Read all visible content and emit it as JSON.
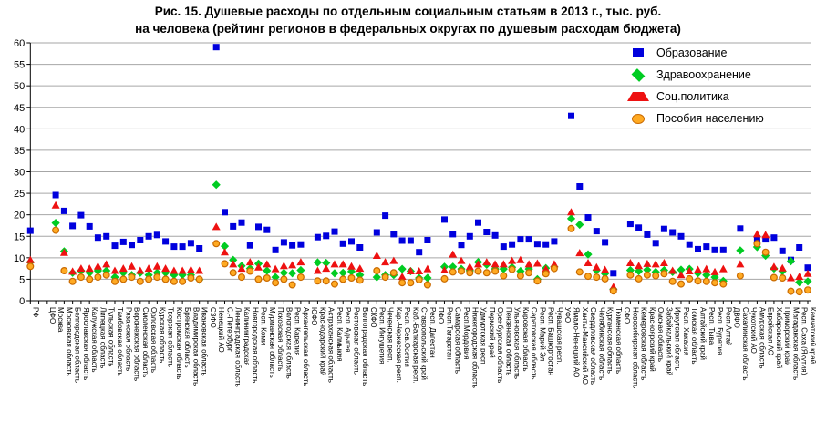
{
  "title": {
    "line1": "Рис. 15. Душевые расходы по отдельным социальным статьям в 2013 г., тыс. руб.",
    "line2": "на человека (рейтинг регионов в федеральных округах по душевым расходам бюджета)"
  },
  "chart_data": {
    "type": "scatter",
    "title": "Рис. 15. Душевые расходы по отдельным социальным статьям в 2013 г., тыс. руб. на человека (рейтинг регионов в федеральных округах по душевым расходам бюджета)",
    "ylabel": "",
    "xlabel": "",
    "ylim": [
      0,
      60
    ],
    "ytick_step": 5,
    "grid": true,
    "legend_position": "top-right",
    "note": "null = маркер не показан (пустая колонка, заголовок округа без данных или значение вне шкалы)",
    "categories": [
      "РФ",
      "",
      "ЦФО",
      "Москва",
      "Московская область",
      "Белгородская область",
      "Ярославская область",
      "Калужская область",
      "Липецкая область",
      "Тульская область",
      "Тамбовская область",
      "Рязанская область",
      "Воронежская область",
      "Смоленская область",
      "Орловская область",
      "Курская область",
      "Тверская область",
      "Костромская область",
      "Брянская область",
      "Владимирская область",
      "Ивановская область",
      "СЗФО",
      "Ненецкий АО",
      "С.-Петербург",
      "Ленинградская область",
      "Калининградская",
      "Новгородская область",
      "Респ. Коми",
      "Мурманская область",
      "Псковская область",
      "Вологодская область",
      "Респ. Карелия",
      "Архангельская область",
      "ЮФО",
      "Краснодарский край",
      "Астраханская область",
      "Респ. Калмыкия",
      "Респ. Адыгея",
      "Ростовская область",
      "Волгоградская область",
      "СКФО",
      "Респ. Ингушетия",
      "Чеченская респ.",
      "Кар.-Черкесская респ.",
      "Респ. Сев.Осетия",
      "Каб.-Балкарская респ.",
      "Ставропольский край",
      "Респ. Дагестан",
      "ПФО",
      "Респ.Татарстан",
      "Самарская область",
      "Респ.Мордовия",
      "Нижегородская область",
      "Удмуртская респ.",
      "Пермский край",
      "Оренбургская область",
      "Пензенская область",
      "Ульяновская область",
      "Кировская область",
      "Саратовская область",
      "Респ. Марий Эл",
      "Респ. Башкортостан",
      "Чувашская респ.",
      "УФО",
      "Ямало-Ненецкий АО",
      "Ханты-Мансийский АО",
      "Свердловская область",
      "Челябинская область",
      "Курганская область",
      "Тюменская область",
      "СФО",
      "Новосибирская область",
      "Кемеровская область",
      "Красноярский край",
      "Омская область",
      "Забайкальский край",
      "Иркутская область",
      "Респ. Хакасия",
      "Томская область",
      "Алтайский край",
      "Респ. Тыва",
      "Респ. Бурятия",
      "Респ.Алтай",
      "ДВФО",
      "Сахалинская область",
      "Чукотский АО",
      "Амурская область",
      "Еврейская АО",
      "Хабаровский край",
      "Приморский край",
      "Магаданская область",
      "Респ. Саха (Якутия)",
      "Камчатский край"
    ],
    "series": [
      {
        "name": "Образование",
        "shape": "square",
        "color": "#0000dd",
        "values": [
          16.3,
          null,
          null,
          24.6,
          20.9,
          17.4,
          19.9,
          17.3,
          14.7,
          15.0,
          12.8,
          13.7,
          13.0,
          14.1,
          15.0,
          15.3,
          13.8,
          12.6,
          12.6,
          13.4,
          12.2,
          null,
          59.0,
          20.6,
          17.3,
          18.2,
          12.9,
          17.2,
          16.5,
          11.8,
          13.6,
          12.9,
          13.1,
          null,
          14.8,
          15.1,
          16.1,
          13.3,
          13.8,
          12.4,
          null,
          15.9,
          19.8,
          15.5,
          14.0,
          14.0,
          11.3,
          14.1,
          null,
          18.9,
          15.5,
          13.0,
          15.0,
          18.2,
          16.0,
          15.2,
          12.6,
          13.1,
          14.3,
          14.3,
          13.2,
          13.1,
          13.8,
          null,
          43.0,
          26.6,
          19.4,
          16.2,
          13.6,
          6.4,
          null,
          17.9,
          17.0,
          15.4,
          13.4,
          16.7,
          15.9,
          15.0,
          13.1,
          12.0,
          12.6,
          11.8,
          11.8,
          null,
          16.8,
          null,
          14.5,
          14.3,
          14.7,
          11.6,
          9.5,
          12.4,
          7.7
        ]
      },
      {
        "name": "Здравоохранение",
        "shape": "diamond",
        "color": "#00cc22",
        "values": [
          9.0,
          null,
          null,
          18.1,
          11.5,
          6.5,
          7.0,
          6.5,
          7.0,
          7.0,
          5.5,
          6.5,
          6.0,
          6.5,
          6.0,
          6.5,
          6.5,
          6.0,
          6.0,
          6.0,
          4.9,
          null,
          27.0,
          12.7,
          9.5,
          8.1,
          7.5,
          8.6,
          7.0,
          5.5,
          6.5,
          6.4,
          7.1,
          null,
          8.9,
          8.8,
          6.4,
          6.5,
          6.8,
          6.0,
          null,
          5.5,
          6.0,
          6.0,
          7.4,
          6.9,
          5.3,
          5.3,
          null,
          7.9,
          7.9,
          7.4,
          7.0,
          9.0,
          8.4,
          7.4,
          7.4,
          7.8,
          6.9,
          7.4,
          5.0,
          7.6,
          7.9,
          null,
          19.1,
          17.7,
          10.8,
          7.1,
          6.3,
          2.7,
          null,
          7.1,
          6.9,
          7.2,
          6.7,
          7.1,
          6.7,
          7.2,
          7.4,
          6.4,
          6.0,
          5.5,
          4.6,
          null,
          11.7,
          null,
          12.5,
          10.5,
          7.5,
          6.9,
          9.2,
          4.3,
          4.5
        ]
      },
      {
        "name": "Соц.политика",
        "shape": "triangle",
        "color": "#ee1111",
        "values": [
          9.5,
          null,
          null,
          22.2,
          11.2,
          6.8,
          7.5,
          7.5,
          8.0,
          8.5,
          7.0,
          7.5,
          8.0,
          7.0,
          7.5,
          8.0,
          7.5,
          7.0,
          7.0,
          7.2,
          7.0,
          null,
          17.2,
          11.3,
          8.5,
          7.5,
          9.0,
          7.8,
          8.5,
          7.4,
          8.1,
          8.3,
          9.0,
          null,
          7.0,
          7.5,
          8.5,
          8.5,
          8.0,
          7.5,
          null,
          10.5,
          9.0,
          9.3,
          5.6,
          6.9,
          6.9,
          7.4,
          null,
          7.1,
          10.8,
          9.3,
          7.9,
          8.5,
          9.0,
          8.5,
          8.5,
          9.3,
          9.5,
          8.5,
          8.7,
          7.4,
          8.5,
          null,
          20.6,
          11.1,
          8.8,
          7.8,
          7.2,
          3.2,
          null,
          8.8,
          8.1,
          8.6,
          8.5,
          8.8,
          7.0,
          6.0,
          6.9,
          7.2,
          7.4,
          6.7,
          7.4,
          null,
          8.5,
          null,
          15.5,
          15.3,
          7.9,
          7.6,
          5.3,
          5.6,
          6.3
        ]
      },
      {
        "name": "Пособия населению",
        "shape": "circle",
        "color": "#ffaa22",
        "border_color": "#c96a00",
        "values": [
          8.0,
          null,
          null,
          16.4,
          7.0,
          4.5,
          5.5,
          5.0,
          5.5,
          6.0,
          4.5,
          5.0,
          5.5,
          4.5,
          5.0,
          5.5,
          5.0,
          4.5,
          4.5,
          5.3,
          5.0,
          null,
          13.3,
          8.6,
          6.5,
          5.5,
          6.9,
          5.0,
          5.3,
          4.2,
          5.0,
          3.7,
          5.5,
          null,
          4.6,
          4.6,
          3.9,
          5.0,
          5.3,
          4.8,
          null,
          7.0,
          5.5,
          6.5,
          4.2,
          4.2,
          4.9,
          3.7,
          null,
          5.1,
          6.7,
          6.9,
          6.5,
          6.9,
          6.5,
          6.9,
          5.8,
          7.3,
          5.8,
          6.5,
          4.6,
          6.3,
          7.5,
          null,
          16.8,
          6.7,
          5.7,
          5.5,
          5.1,
          2.3,
          null,
          6.0,
          5.1,
          6.0,
          5.8,
          6.3,
          4.5,
          3.9,
          5.1,
          4.6,
          4.5,
          4.2,
          3.9,
          null,
          5.8,
          null,
          13.3,
          11.3,
          5.4,
          5.3,
          2.2,
          2.1,
          2.5
        ]
      }
    ],
    "axis_colors": {
      "grid": "#a6a6a6",
      "axis": "#000000"
    }
  }
}
